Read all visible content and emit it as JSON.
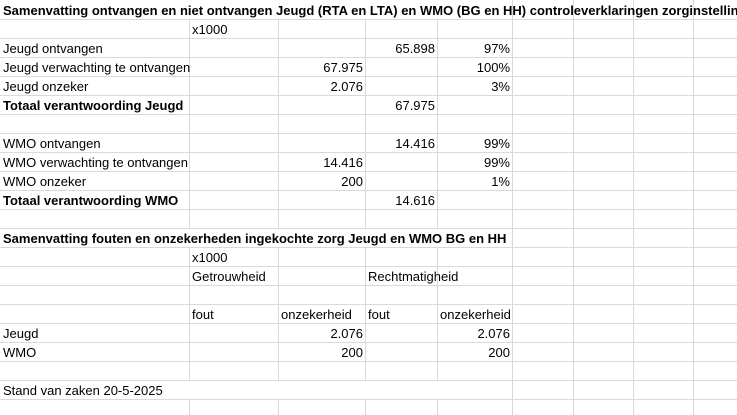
{
  "title1": "Samenvatting ontvangen en niet ontvangen Jeugd (RTA en LTA) en WMO (BG en HH) controleverklaringen zorginstellingen",
  "unit1": "x1000",
  "jeugd": {
    "ontvangen_label": "Jeugd ontvangen",
    "ontvangen_value": "65.898",
    "ontvangen_pct": "97%",
    "verwachting_label": "Jeugd verwachting te ontvangen",
    "verwachting_value": "67.975",
    "verwachting_pct": "100%",
    "onzeker_label": "Jeugd onzeker",
    "onzeker_value": "2.076",
    "onzeker_pct": "3%",
    "totaal_label": "Totaal verantwoording Jeugd",
    "totaal_value": "67.975"
  },
  "wmo": {
    "ontvangen_label": "WMO ontvangen",
    "ontvangen_value": "14.416",
    "ontvangen_pct": "99%",
    "verwachting_label": "WMO verwachting te ontvangen",
    "verwachting_value": "14.416",
    "verwachting_pct": "99%",
    "onzeker_label": "WMO onzeker",
    "onzeker_value": "200",
    "onzeker_pct": "1%",
    "totaal_label": "Totaal verantwoording WMO",
    "totaal_value": "14.616"
  },
  "title2": "Samenvatting fouten en onzekerheden ingekochte zorg Jeugd en WMO BG en HH",
  "unit2": "x1000",
  "getrouwheid": "Getrouwheid",
  "rechtmatigheid": "Rechtmatigheid",
  "col_fout": "fout",
  "col_onzekerheid": "onzekerheid",
  "col_fout2": "fout",
  "col_onzekerheid2": "onzekerheid",
  "fouten_rows": [
    {
      "label": "Jeugd",
      "getr_onzekerheid": "2.076",
      "recht_onzekerheid": "2.076"
    },
    {
      "label": "WMO",
      "getr_onzekerheid": "200",
      "recht_onzekerheid": "200"
    }
  ],
  "stand": "Stand van zaken 20-5-2025"
}
